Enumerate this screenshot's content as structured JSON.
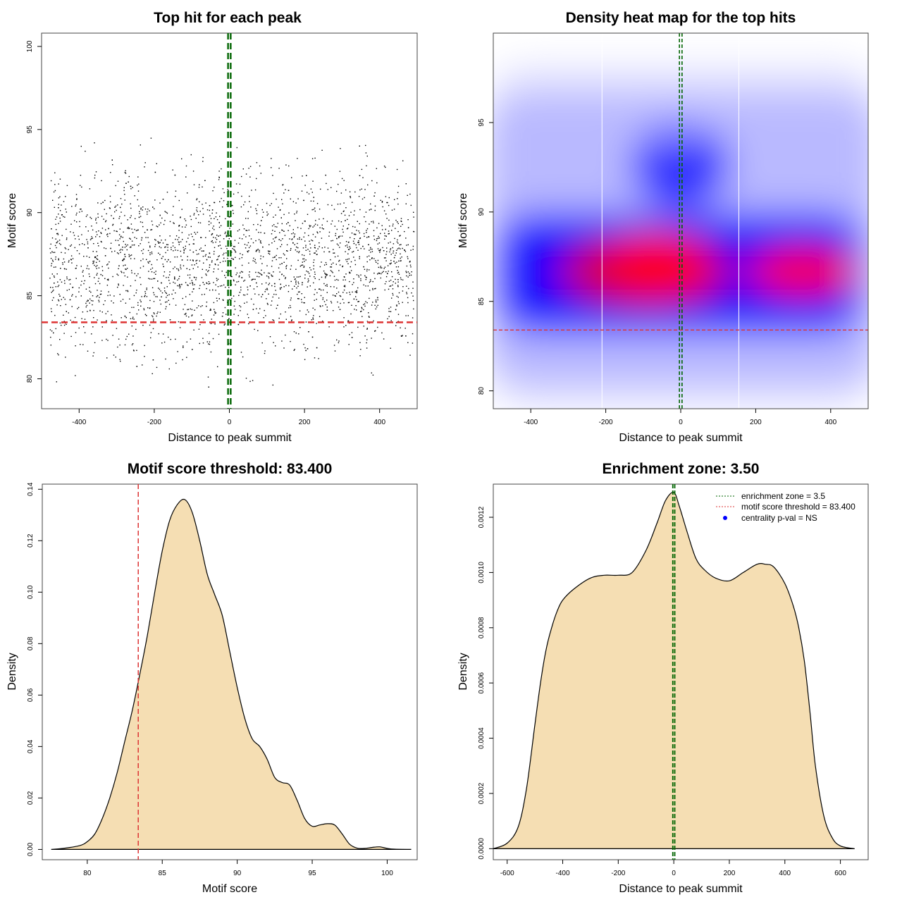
{
  "chart_data": [
    {
      "type": "scatter",
      "title": "Top hit for each peak",
      "xlabel": "Distance to peak summit",
      "ylabel": "Motif score",
      "xlim": [
        -500,
        500
      ],
      "ylim": [
        78.2,
        100.8
      ],
      "xticks": [
        -400,
        -200,
        0,
        200,
        400
      ],
      "yticks": [
        80,
        85,
        90,
        95,
        100
      ],
      "points_description_count": 2600,
      "threshold_line": {
        "y": 83.4,
        "color": "#dd3333",
        "style": "dashed"
      },
      "center_lines": {
        "x": [
          -3.5,
          3.5
        ],
        "color": "#006400",
        "style": "dashed"
      },
      "point_color": "#000000"
    },
    {
      "type": "heatmap",
      "title": "Density heat map for the top hits",
      "xlabel": "Distance to peak summit",
      "ylabel": "Motif score",
      "xlim": [
        -500,
        500
      ],
      "ylim": [
        79,
        100
      ],
      "xticks": [
        -400,
        -200,
        0,
        200,
        400
      ],
      "yticks": [
        80,
        85,
        90,
        95
      ],
      "density_peaks": [
        {
          "x": -40,
          "y": 86.5,
          "intensity": "high"
        },
        {
          "x": 330,
          "y": 86.8,
          "intensity": "high"
        }
      ],
      "threshold_line": {
        "y": 83.4,
        "color": "#dd3333",
        "style": "dashed"
      },
      "center_lines": {
        "x": [
          -3.5,
          3.5
        ],
        "color": "#006400",
        "style": "dashed"
      },
      "white_lines": {
        "x": [
          -210,
          155
        ]
      },
      "colors": [
        "#ffffff",
        "#0000ff",
        "#ff0000"
      ]
    },
    {
      "type": "area",
      "title": "Motif score threshold: 83.400",
      "xlabel": "Motif score",
      "ylabel": "Density",
      "xlim": [
        77,
        102
      ],
      "ylim": [
        -0.004,
        0.142
      ],
      "xticks": [
        80,
        85,
        90,
        95,
        100
      ],
      "yticks": [
        0.0,
        0.02,
        0.04,
        0.06,
        0.08,
        0.1,
        0.12,
        0.14
      ],
      "fill": "#f5deb3",
      "threshold_line": {
        "x": 83.4,
        "color": "#dd3333",
        "style": "dashed"
      },
      "x": [
        77.6,
        78.5,
        79.5,
        80.0,
        80.5,
        81.0,
        81.5,
        82.0,
        82.5,
        83.0,
        83.5,
        84.0,
        84.5,
        85.0,
        85.5,
        86.0,
        86.5,
        87.0,
        87.5,
        88.0,
        88.5,
        89.0,
        89.5,
        90.0,
        90.5,
        91.0,
        91.5,
        92.0,
        92.5,
        93.0,
        93.5,
        94.0,
        94.5,
        95.0,
        95.5,
        96.0,
        96.5,
        97.0,
        97.5,
        98.0,
        98.5,
        99.0,
        99.5,
        100.0,
        100.5,
        101.6
      ],
      "y": [
        0.0,
        0.0005,
        0.0015,
        0.003,
        0.006,
        0.012,
        0.02,
        0.03,
        0.042,
        0.054,
        0.068,
        0.083,
        0.1,
        0.116,
        0.128,
        0.134,
        0.136,
        0.131,
        0.12,
        0.107,
        0.099,
        0.091,
        0.077,
        0.063,
        0.051,
        0.043,
        0.04,
        0.035,
        0.028,
        0.026,
        0.025,
        0.019,
        0.012,
        0.009,
        0.0095,
        0.01,
        0.0095,
        0.006,
        0.002,
        0.0005,
        0.0004,
        0.0008,
        0.001,
        0.0004,
        0.0001,
        0.0
      ]
    },
    {
      "type": "area",
      "title": "Enrichment zone: 3.50",
      "xlabel": "Distance to peak summit",
      "ylabel": "Density",
      "xlim": [
        -650,
        700
      ],
      "ylim": [
        -4e-05,
        0.00132
      ],
      "xticks": [
        -600,
        -400,
        -200,
        0,
        200,
        400,
        600
      ],
      "yticks": [
        0.0,
        0.0002,
        0.0004,
        0.0006,
        0.0008,
        0.001,
        0.0012
      ],
      "fill": "#f5deb3",
      "center_lines": {
        "x": [
          -3.5,
          3.5
        ],
        "color": "#006400",
        "style": "dashed"
      },
      "x": [
        -650,
        -600,
        -560,
        -530,
        -500,
        -480,
        -460,
        -440,
        -420,
        -400,
        -360,
        -300,
        -250,
        -200,
        -150,
        -100,
        -60,
        -30,
        0,
        20,
        50,
        80,
        110,
        150,
        200,
        250,
        300,
        330,
        360,
        400,
        430,
        450,
        470,
        490,
        510,
        540,
        570,
        600,
        650
      ],
      "y": [
        0.0,
        2e-05,
        8e-05,
        0.00022,
        0.00045,
        0.0006,
        0.00072,
        0.0008,
        0.00086,
        0.0009,
        0.00094,
        0.00098,
        0.00099,
        0.00099,
        0.001,
        0.00108,
        0.00118,
        0.00126,
        0.00129,
        0.00124,
        0.00114,
        0.00105,
        0.00101,
        0.00098,
        0.00097,
        0.001,
        0.00103,
        0.00103,
        0.00102,
        0.00096,
        0.00088,
        0.0008,
        0.00068,
        0.0005,
        0.0003,
        0.00012,
        4e-05,
        1e-05,
        0.0
      ],
      "legend": {
        "position": "top-right",
        "entries": [
          {
            "label": "enrichment zone = 3.5",
            "color": "#006400",
            "kind": "dotted-line"
          },
          {
            "label": "motif score threshold = 83.400",
            "color": "#dd3333",
            "kind": "dotted-line"
          },
          {
            "label": "centrality p-val = NS",
            "color": "#0000ff",
            "kind": "point"
          }
        ]
      }
    }
  ]
}
